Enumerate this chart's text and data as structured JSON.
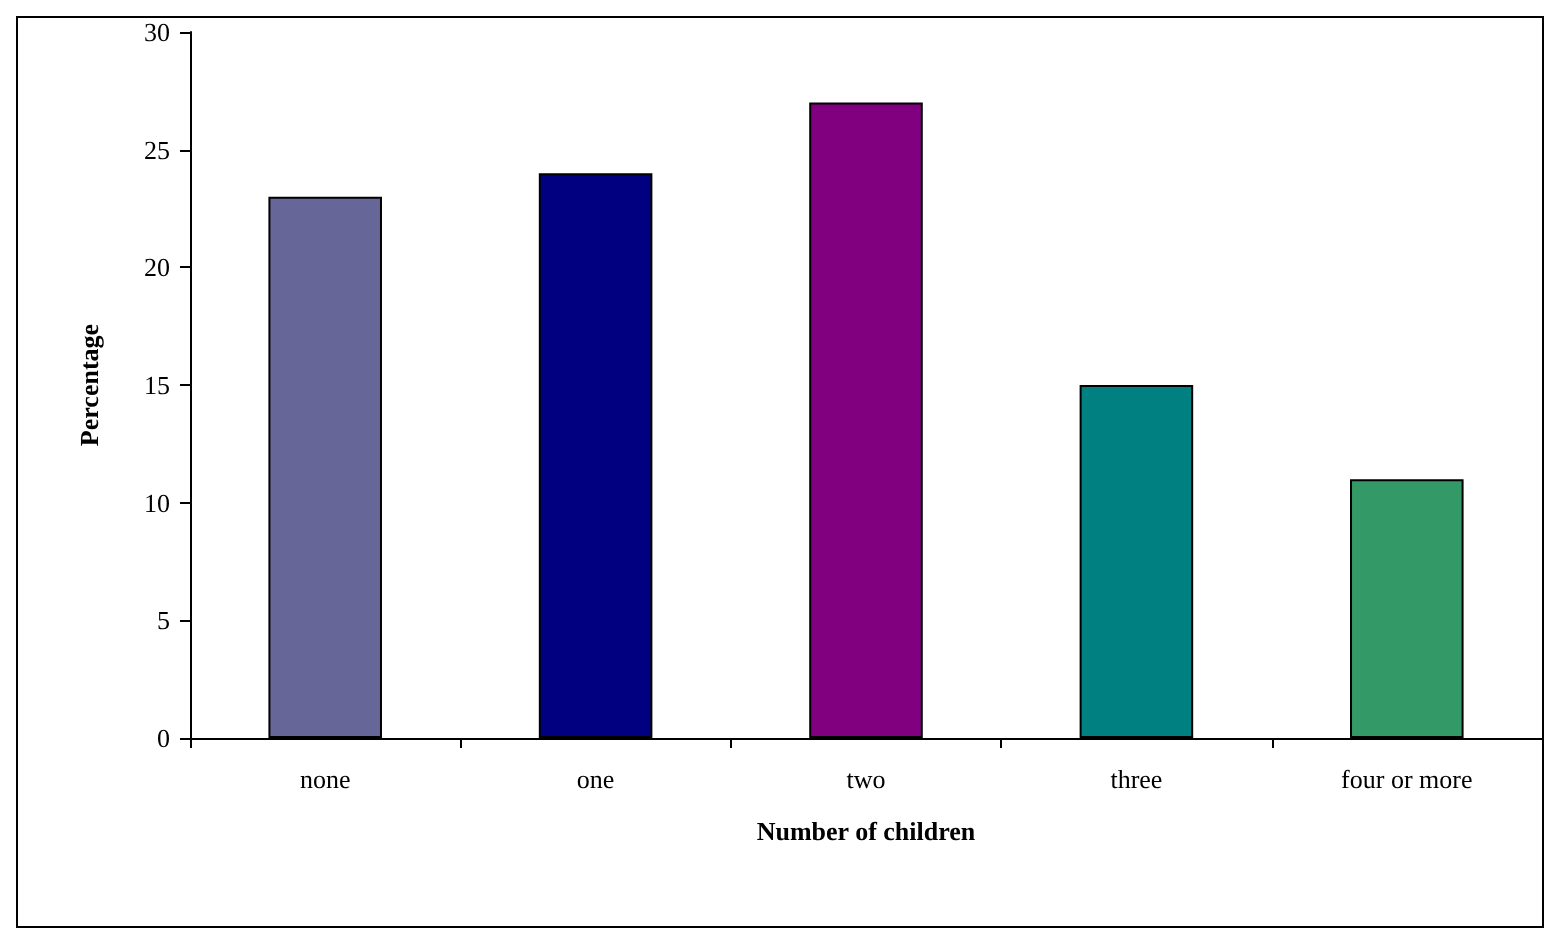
{
  "chart_data": {
    "type": "bar",
    "xlabel": "Number of children",
    "ylabel": "Percentage",
    "categories": [
      "none",
      "one",
      "two",
      "three",
      "four or more"
    ],
    "values": [
      23,
      24,
      27,
      15,
      11
    ],
    "colors": [
      "#666699",
      "#000080",
      "#800080",
      "#008080",
      "#339966"
    ],
    "ylim": [
      0,
      30
    ],
    "yticks": [
      0,
      5,
      10,
      15,
      20,
      25,
      30
    ]
  }
}
